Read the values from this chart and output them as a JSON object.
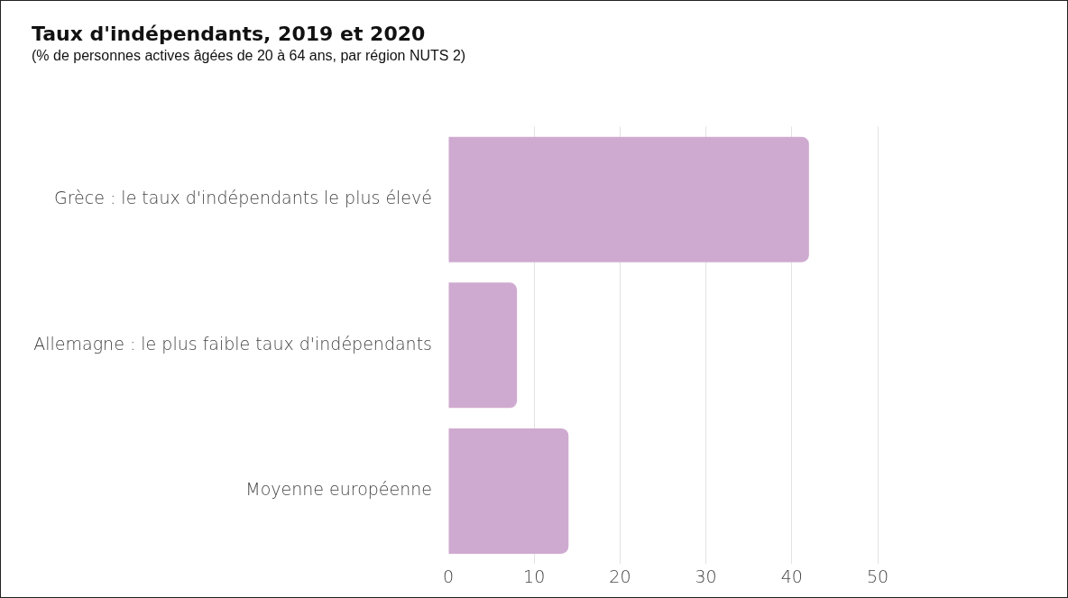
{
  "chart_data": {
    "type": "bar",
    "orientation": "horizontal",
    "title": "Taux d'indépendants, 2019 et 2020",
    "subtitle": "(% de personnes actives âgées de 20 à 64 ans, par région NUTS 2)",
    "categories": [
      "Grèce : le taux d'indépendants le plus élevé",
      "Allemagne : le plus faible taux d'indépendants",
      "Moyenne européenne"
    ],
    "values": [
      42,
      8,
      14
    ],
    "color": "#cfaad0",
    "xlim": [
      0,
      50
    ],
    "xticks": [
      0,
      10,
      20,
      30,
      40,
      50
    ],
    "grid": "x"
  }
}
